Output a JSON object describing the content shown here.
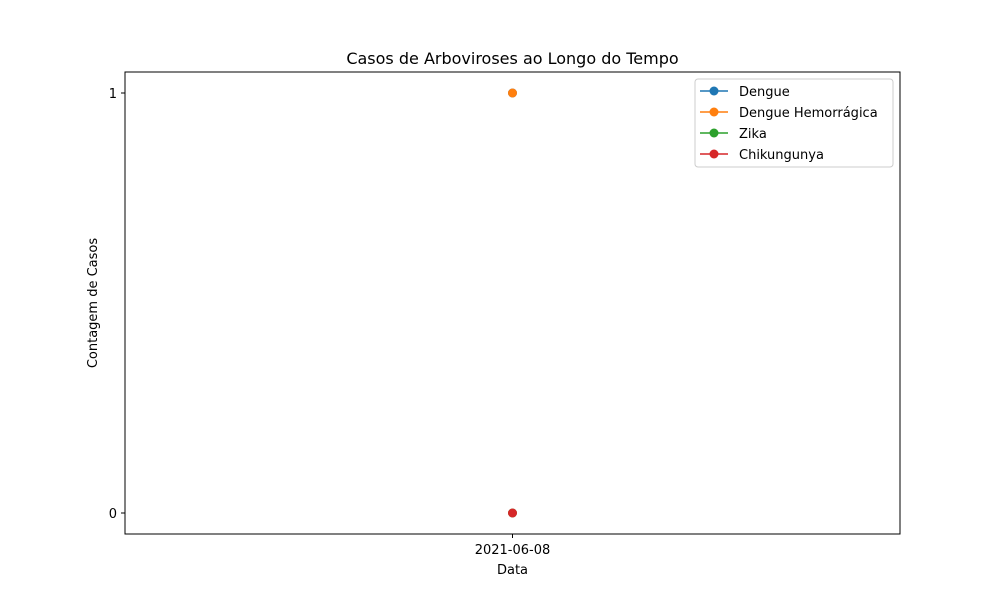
{
  "chart_data": {
    "type": "line",
    "title": "Casos de Arboviroses ao Longo do Tempo",
    "xlabel": "Data",
    "ylabel": "Contagem de Casos",
    "x": [
      "2021-06-08"
    ],
    "y_ticks": [
      0,
      1
    ],
    "ylim": [
      -0.05,
      1.05
    ],
    "grid": false,
    "legend_position": "top-right",
    "series": [
      {
        "name": "Dengue",
        "color": "#1f77b4",
        "values": [
          1
        ]
      },
      {
        "name": "Dengue Hemorrágica",
        "color": "#ff7f0e",
        "values": [
          1
        ]
      },
      {
        "name": "Zika",
        "color": "#2ca02c",
        "values": [
          0
        ]
      },
      {
        "name": "Chikungunya",
        "color": "#d62728",
        "values": [
          0
        ]
      }
    ]
  }
}
